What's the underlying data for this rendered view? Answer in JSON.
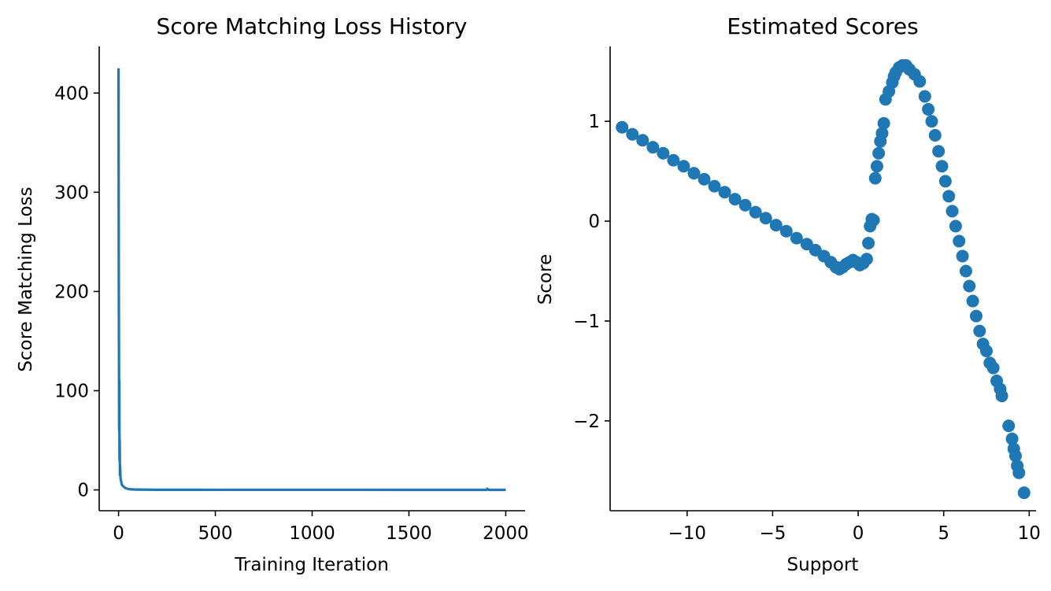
{
  "chart_data": [
    {
      "type": "line",
      "title": "Score Matching Loss History",
      "xlabel": "Training Iteration",
      "ylabel": "Score Matching Loss",
      "xlim": [
        -100,
        2100
      ],
      "ylim": [
        -21,
        447
      ],
      "xticks": [
        0,
        500,
        1000,
        1500,
        2000
      ],
      "xtick_labels": [
        "0",
        "500",
        "1000",
        "1500",
        "2000"
      ],
      "yticks": [
        0,
        100,
        200,
        300,
        400
      ],
      "ytick_labels": [
        "0",
        "100",
        "200",
        "300",
        "400"
      ],
      "grid": false,
      "color": "#1f77b4",
      "series": [
        {
          "x": [
            0,
            1,
            2,
            3,
            4,
            5,
            6,
            7,
            8,
            10,
            12,
            14,
            16,
            18,
            20,
            25,
            30,
            35,
            40,
            50,
            60,
            80,
            100,
            150,
            200,
            300,
            500,
            800,
            1000,
            1200,
            1500,
            1800,
            1900,
            1905,
            1910,
            2000
          ],
          "y": [
            425,
            240,
            150,
            60,
            110,
            30,
            50,
            15,
            25,
            12,
            10,
            8,
            6,
            5,
            4.5,
            3.5,
            2.5,
            2,
            1.5,
            1,
            0.6,
            0.4,
            0.3,
            0.2,
            0.15,
            0.1,
            0.08,
            0.06,
            0.05,
            0.05,
            0.04,
            0.04,
            0.04,
            1.2,
            0.04,
            0.03
          ]
        }
      ]
    },
    {
      "type": "scatter",
      "title": "Estimated Scores",
      "xlabel": "Support",
      "ylabel": "Score",
      "xlim": [
        -14.5,
        10.4
      ],
      "ylim": [
        -2.9,
        1.75
      ],
      "xticks": [
        -10,
        -5,
        0,
        5,
        10
      ],
      "xtick_labels": [
        "−10",
        "−5",
        "0",
        "5",
        "10"
      ],
      "yticks": [
        -2,
        -1,
        0,
        1
      ],
      "ytick_labels": [
        "−2",
        "−1",
        "0",
        "1"
      ],
      "grid": false,
      "color": "#1f77b4",
      "series": [
        {
          "x": [
            -13.8,
            -13.2,
            -12.6,
            -12.0,
            -11.4,
            -10.8,
            -10.2,
            -9.6,
            -9.0,
            -8.4,
            -7.8,
            -7.2,
            -6.6,
            -6.0,
            -5.4,
            -4.8,
            -4.2,
            -3.6,
            -3.0,
            -2.5,
            -2.0,
            -1.6,
            -1.3,
            -1.1,
            -0.9,
            -0.7,
            -0.5,
            -0.3,
            -0.1,
            0.1,
            0.3,
            0.5,
            0.6,
            0.7,
            0.8,
            0.9,
            1.0,
            1.1,
            1.2,
            1.3,
            1.4,
            1.5,
            1.6,
            1.8,
            2.0,
            2.1,
            2.2,
            2.4,
            2.6,
            2.8,
            3.0,
            3.3,
            3.6,
            3.9,
            4.1,
            4.3,
            4.5,
            4.7,
            4.9,
            5.1,
            5.3,
            5.5,
            5.7,
            5.9,
            6.1,
            6.3,
            6.5,
            6.7,
            6.9,
            7.1,
            7.3,
            7.5,
            7.7,
            7.9,
            8.1,
            8.3,
            8.4,
            8.8,
            9.0,
            9.1,
            9.2,
            9.3,
            9.4,
            9.7
          ],
          "y": [
            0.94,
            0.87,
            0.81,
            0.74,
            0.68,
            0.61,
            0.55,
            0.48,
            0.42,
            0.35,
            0.29,
            0.22,
            0.16,
            0.09,
            0.03,
            -0.04,
            -0.1,
            -0.17,
            -0.23,
            -0.29,
            -0.35,
            -0.41,
            -0.46,
            -0.48,
            -0.46,
            -0.43,
            -0.41,
            -0.39,
            -0.41,
            -0.44,
            -0.42,
            -0.38,
            -0.22,
            -0.05,
            0.02,
            0.01,
            0.43,
            0.55,
            0.68,
            0.8,
            0.88,
            0.98,
            1.22,
            1.3,
            1.39,
            1.45,
            1.49,
            1.54,
            1.56,
            1.56,
            1.52,
            1.47,
            1.4,
            1.25,
            1.12,
            1.0,
            0.86,
            0.7,
            0.55,
            0.4,
            0.25,
            0.1,
            -0.05,
            -0.2,
            -0.35,
            -0.5,
            -0.65,
            -0.8,
            -0.95,
            -1.1,
            -1.23,
            -1.3,
            -1.42,
            -1.47,
            -1.6,
            -1.68,
            -1.75,
            -2.05,
            -2.18,
            -2.28,
            -2.35,
            -2.45,
            -2.52,
            -2.72
          ]
        }
      ]
    }
  ]
}
